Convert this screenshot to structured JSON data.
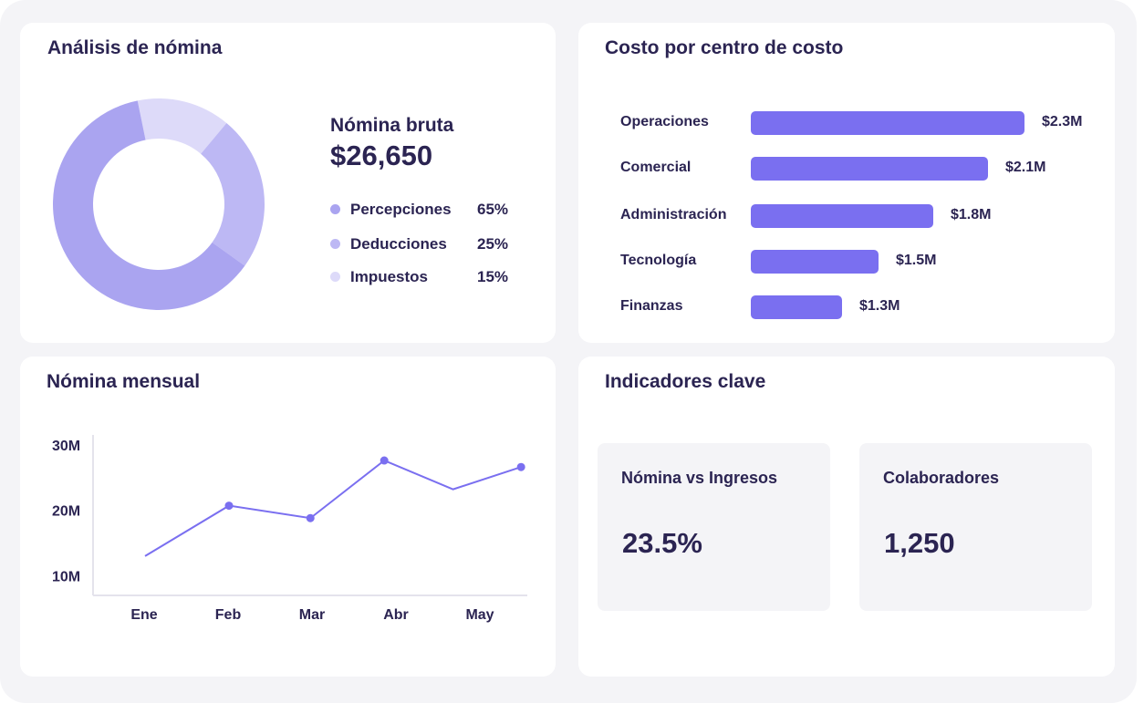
{
  "colors": {
    "accent": "#7a6ff0",
    "percepciones": "#aaa4f0",
    "deducciones": "#bdb8f4",
    "impuestos": "#dddaf9",
    "text": "#2b2452",
    "panel_bg": "#f4f4f7"
  },
  "analysis": {
    "title": "Análisis de nómina",
    "gross_label": "Nómina bruta",
    "gross_value": "$26,650",
    "legend": [
      {
        "name": "Percepciones",
        "pct": "65%",
        "value": 65
      },
      {
        "name": "Deducciones",
        "pct": "25%",
        "value": 25
      },
      {
        "name": "Impuestos",
        "pct": "15%",
        "value": 15
      }
    ]
  },
  "cost": {
    "title": "Costo por centro de costo",
    "rows": [
      {
        "label": "Operaciones",
        "value": 2.3,
        "value_label": "$2.3M"
      },
      {
        "label": "Comercial",
        "value": 2.1,
        "value_label": "$2.1M"
      },
      {
        "label": "Administración",
        "value": 1.8,
        "value_label": "$1.8M"
      },
      {
        "label": "Tecnología",
        "value": 1.5,
        "value_label": "$1.5M"
      },
      {
        "label": "Finanzas",
        "value": 1.3,
        "value_label": "$1.3M"
      }
    ]
  },
  "monthly": {
    "title": "Nómina mensual"
  },
  "kpi": {
    "title": "Indicadores clave",
    "items": [
      {
        "label": "Nómina vs Ingresos",
        "value": "23.5%"
      },
      {
        "label": "Colaboradores",
        "value": "1,250"
      }
    ]
  },
  "chart_data": [
    {
      "type": "pie",
      "title": "Análisis de nómina",
      "categories": [
        "Percepciones",
        "Deducciones",
        "Impuestos"
      ],
      "values": [
        65,
        25,
        15
      ],
      "unit": "%"
    },
    {
      "type": "bar",
      "title": "Costo por centro de costo",
      "categories": [
        "Operaciones",
        "Comercial",
        "Administración",
        "Tecnología",
        "Finanzas"
      ],
      "values": [
        2.3,
        2.1,
        1.8,
        1.5,
        1.3
      ],
      "data_labels": [
        "$2.3M",
        "$2.1M",
        "$1.8M",
        "$1.5M",
        "$1.3M"
      ],
      "orientation": "horizontal",
      "xlim": [
        0,
        2.3
      ]
    },
    {
      "type": "line",
      "title": "Nómina mensual",
      "x": [
        "",
        "Ene",
        "",
        "Feb",
        "",
        "Mar",
        "",
        "Abr",
        "",
        "May",
        ""
      ],
      "x_tick_labels": [
        "Ene",
        "Feb",
        "Mar",
        "Abr",
        "May"
      ],
      "y_tick_labels": [
        "10M",
        "20M",
        "30M"
      ],
      "y_ticks": [
        10,
        20,
        30
      ],
      "ylim": [
        7,
        31.5
      ],
      "points": [
        {
          "x": 0.0,
          "y": 13.0,
          "marker": false
        },
        {
          "x": 1.0,
          "y": 20.7,
          "marker": true
        },
        {
          "x": 1.97,
          "y": 18.8,
          "marker": true
        },
        {
          "x": 2.85,
          "y": 27.6,
          "marker": true
        },
        {
          "x": 3.67,
          "y": 23.2,
          "marker": false
        },
        {
          "x": 4.48,
          "y": 26.6,
          "marker": true
        }
      ],
      "x_tick_positions": [
        0,
        1,
        2,
        3,
        4
      ],
      "xlim": [
        -0.6,
        4.48
      ],
      "grid": false
    }
  ]
}
